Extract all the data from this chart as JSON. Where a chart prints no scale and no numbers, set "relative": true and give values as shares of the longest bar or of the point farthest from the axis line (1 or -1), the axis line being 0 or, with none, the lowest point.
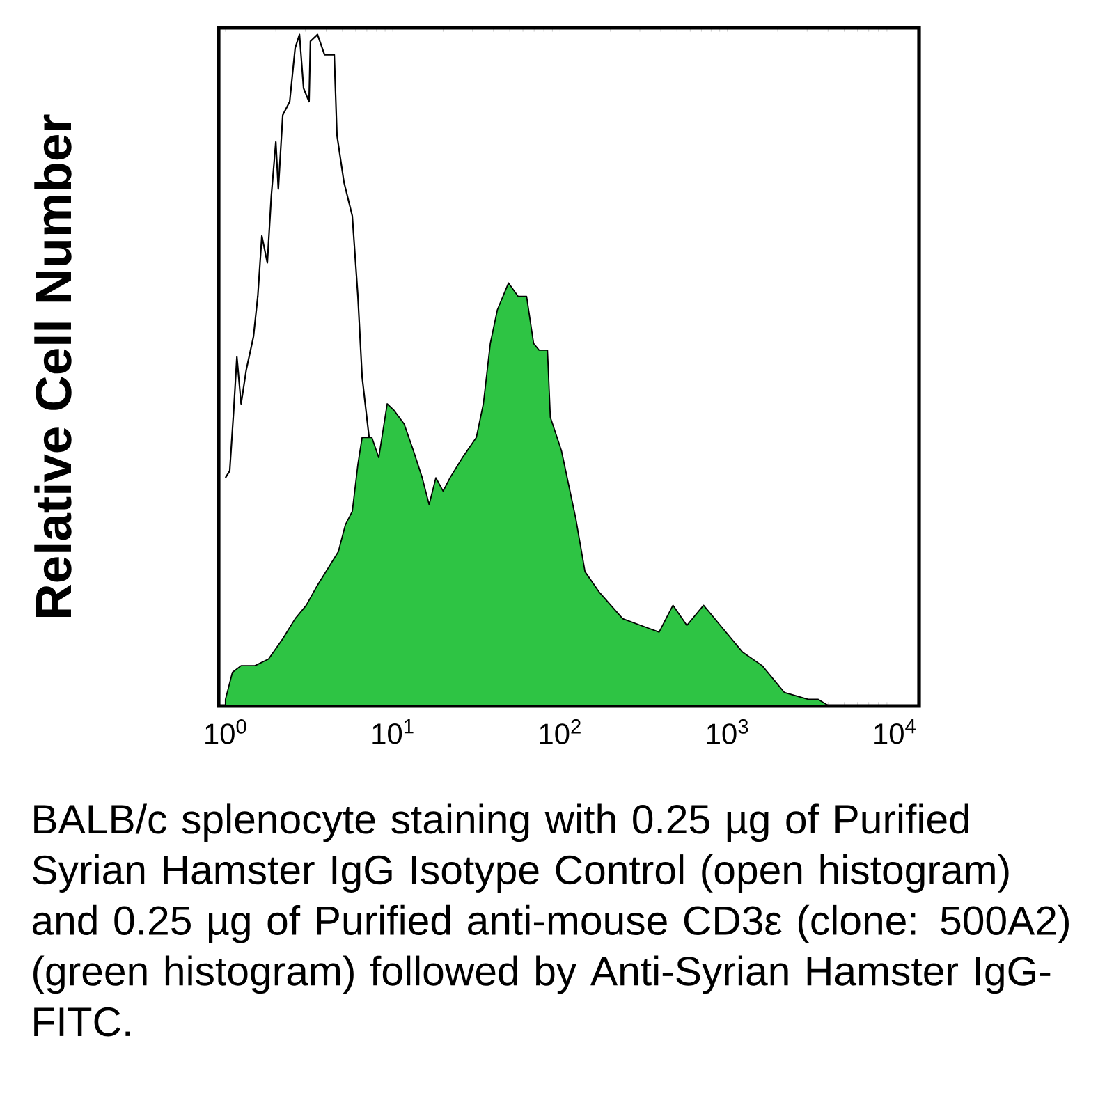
{
  "chart_data": {
    "type": "area",
    "relative": true,
    "log": "x",
    "ylabel": "Relative Cell Number",
    "xlim": [
      0.91,
      14000
    ],
    "xticks": [
      {
        "value": 1,
        "label": "10$^{0}$"
      },
      {
        "value": 10,
        "label": "10$^{1}$"
      },
      {
        "value": 100,
        "label": "10$^{2}$"
      },
      {
        "value": 1000,
        "label": "10$^{3}$"
      },
      {
        "value": 10000,
        "label": "10$^{4}$"
      }
    ],
    "series": [
      {
        "type": "line",
        "color": "#000000",
        "x": [
          1.0,
          1.06,
          1.12,
          1.17,
          1.24,
          1.33,
          1.47,
          1.56,
          1.65,
          1.78,
          1.88,
          2.0,
          2.07,
          2.2,
          2.42,
          2.61,
          2.77,
          2.93,
          3.16,
          3.22,
          3.55,
          3.91,
          4.47,
          4.64,
          5.11,
          5.73,
          6.19,
          6.56,
          7.22
        ],
        "values": [
          0.34,
          0.35,
          0.44,
          0.52,
          0.45,
          0.5,
          0.55,
          0.61,
          0.7,
          0.66,
          0.76,
          0.84,
          0.77,
          0.88,
          0.9,
          0.98,
          1.0,
          0.92,
          0.9,
          0.99,
          1.0,
          0.97,
          0.97,
          0.85,
          0.78,
          0.73,
          0.61,
          0.49,
          0.4
        ]
      },
      {
        "color": "#2ec444",
        "x": [
          1.0,
          1.1,
          1.24,
          1.5,
          1.81,
          2.2,
          2.61,
          3.04,
          3.55,
          4.22,
          4.73,
          5.21,
          5.73,
          6.19,
          6.56,
          7.5,
          8.25,
          9.26,
          10.2,
          11.7,
          13.3,
          15.0,
          16.5,
          18.1,
          20.0,
          22.0,
          26.1,
          31.6,
          34.8,
          38.3,
          42.2,
          49.2,
          56.2,
          63.1,
          69.5,
          75.0,
          84.1,
          87.5,
          102,
          124,
          141,
          171,
          237,
          304,
          391,
          473,
          573,
          721,
          908,
          1236,
          1616,
          2197,
          3041,
          3483,
          4057
        ],
        "values": [
          0.01,
          0.05,
          0.06,
          0.06,
          0.07,
          0.1,
          0.13,
          0.15,
          0.18,
          0.21,
          0.23,
          0.27,
          0.29,
          0.36,
          0.4,
          0.4,
          0.37,
          0.45,
          0.44,
          0.42,
          0.38,
          0.34,
          0.3,
          0.34,
          0.32,
          0.34,
          0.37,
          0.4,
          0.45,
          0.54,
          0.59,
          0.63,
          0.61,
          0.61,
          0.54,
          0.53,
          0.53,
          0.43,
          0.38,
          0.28,
          0.2,
          0.17,
          0.13,
          0.12,
          0.11,
          0.15,
          0.12,
          0.15,
          0.12,
          0.08,
          0.06,
          0.02,
          0.01,
          0.01,
          0
        ]
      }
    ],
    "annotations": [
      "BALB/c splenocyte staining with 0.25 µg of Purified Syrian Hamster IgG Isotype Control (open histogram) and 0.25 µg of Purified anti-mouse CD3ε (clone: 500A2) (green histogram) followed by Anti-Syrian Hamster IgG-FITC."
    ]
  }
}
